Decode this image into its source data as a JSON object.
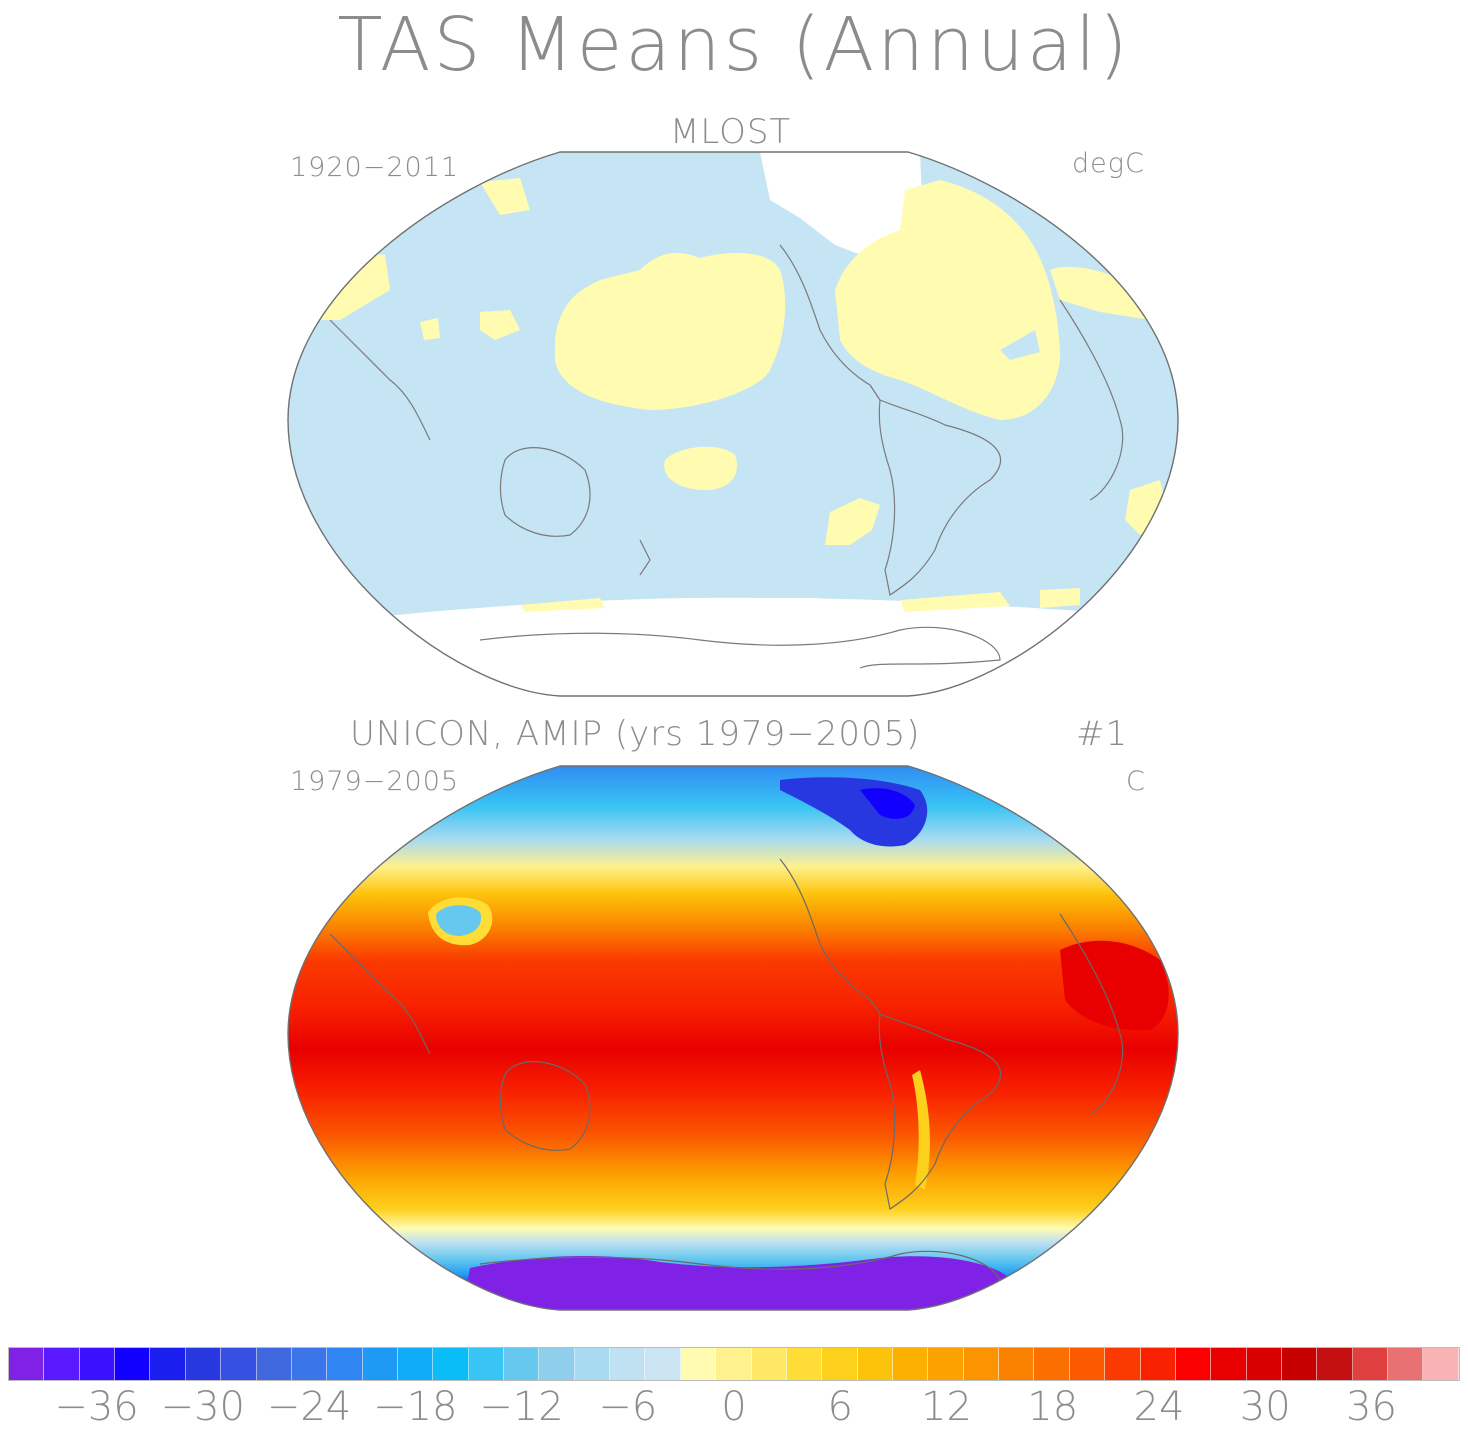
{
  "title": "TAS Means (Annual)",
  "panels": [
    {
      "title": "MLOST",
      "period": "1920−2011",
      "units": "degC"
    },
    {
      "title": "UNICON, AMIP (yrs 1979−2005)",
      "run": "#1",
      "period": "1979−2005",
      "units": "C"
    }
  ],
  "colorbar": {
    "colors": [
      "#7f22e6",
      "#5a1aff",
      "#3a10ff",
      "#1200ff",
      "#1a1eee",
      "#2838e0",
      "#3550e3",
      "#4068df",
      "#3a76ea",
      "#2f86f2",
      "#1e9af5",
      "#10acf7",
      "#0bbdf6",
      "#38c4f4",
      "#66c8ee",
      "#8fcfec",
      "#a8daf0",
      "#bfe1f1",
      "#cbe6f2",
      "#fffcb2",
      "#fff18c",
      "#ffe866",
      "#ffdc36",
      "#fdd01c",
      "#fdc20a",
      "#fcb000",
      "#fca200",
      "#fc9300",
      "#fa8200",
      "#fb6e00",
      "#fb5a00",
      "#fa3a00",
      "#f82200",
      "#fb0000",
      "#e80000",
      "#d80000",
      "#c60000",
      "#c41010",
      "#e04040",
      "#e87272",
      "#f8b4b4"
    ],
    "tick_labels": [
      "−36",
      "−30",
      "−24",
      "−18",
      "−12",
      "−6",
      "0",
      "6",
      "12",
      "18",
      "24",
      "30",
      "36"
    ]
  }
}
